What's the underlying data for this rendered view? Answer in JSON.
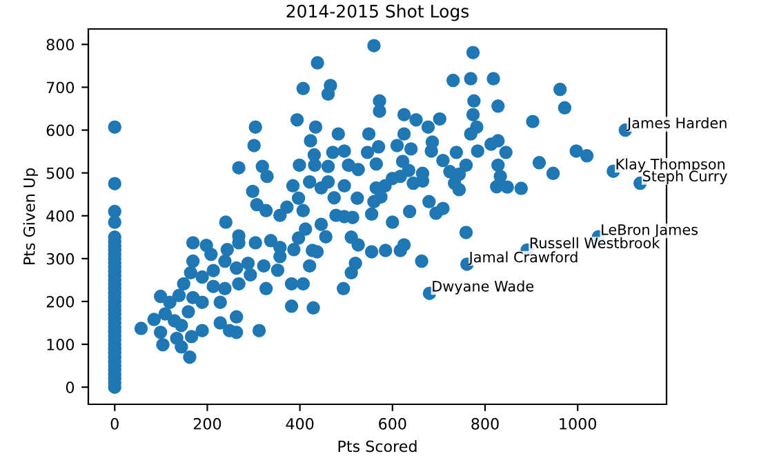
{
  "chart_data": {
    "type": "scatter",
    "title": "2014-2015 Shot Logs",
    "xlabel": "Pts Scored",
    "ylabel": "Pts Given Up",
    "xlim": [
      -57,
      1192
    ],
    "ylim": [
      -40,
      836
    ],
    "xticks": [
      0,
      200,
      400,
      600,
      800,
      1000
    ],
    "yticks": [
      0,
      100,
      200,
      300,
      400,
      500,
      600,
      700,
      800
    ],
    "grid": false,
    "marker": "circle",
    "series": [
      {
        "color": "#1f77b4",
        "x": [
          0,
          0,
          0,
          0,
          0,
          0,
          0,
          0,
          0,
          0,
          0,
          0,
          0,
          0,
          0,
          0,
          0,
          0,
          0,
          0,
          0,
          0,
          0,
          0,
          0,
          0,
          0,
          0,
          0,
          0,
          0,
          0,
          0,
          0,
          0,
          0,
          0,
          0,
          0,
          0,
          560,
          774,
          438,
          466,
          407,
          461,
          731,
          769,
          818,
          962,
          972,
          572,
          572,
          776,
          828,
          625,
          651,
          702,
          677,
          304,
          394,
          434,
          774,
          782,
          769,
          903,
          301,
          423,
          483,
          549,
          625,
          610,
          570,
          496,
          471,
          431,
          546,
          686,
          684,
          813,
          828,
          784,
          738,
          845,
          997,
          1020,
          917,
          947,
          878,
          319,
          268,
          329,
          399,
          432,
          461,
          505,
          526,
          565,
          600,
          617,
          635,
          665,
          709,
          724,
          744,
          759,
          734,
          828,
          833,
          825,
          848,
          744,
          665,
          645,
          584,
          298,
          385,
          421,
          446,
          461,
          474,
          397,
          307,
          327,
          357,
          372,
          407,
          412,
          446,
          478,
          496,
          514,
          524,
          560,
          575,
          555,
          600,
          637,
          679,
          694,
          709,
          759,
          663,
          617,
          625,
          585,
          555,
          526,
          511,
          456,
          427,
          437,
          421,
          397,
          387,
          357,
          337,
          304,
          268,
          240,
          268,
          243,
          208,
          169,
          198,
          169,
          164,
          213,
          238,
          263,
          288,
          322,
          357,
          352,
          382,
          407,
          327,
          293,
          268,
          238,
          213,
          189,
          149,
          169,
          189,
          228,
          99,
          119,
          139,
          159,
          109,
          85,
          129,
          166,
          144,
          189,
          228,
          263,
          248,
          99,
          104,
          134,
          144,
          57,
          162,
          263,
          312,
          382,
          429,
          494,
          520,
          511,
          496,
          565,
          622,
          640,
          1103,
          1077,
          1135,
          1045,
          891,
          761,
          680
        ],
        "values": [
          0,
          10,
          20,
          30,
          40,
          50,
          60,
          70,
          80,
          90,
          100,
          110,
          120,
          130,
          140,
          150,
          160,
          170,
          180,
          190,
          200,
          210,
          220,
          230,
          240,
          250,
          260,
          270,
          280,
          290,
          300,
          310,
          320,
          330,
          340,
          350,
          385,
          410,
          475,
          607,
          797,
          781,
          757,
          704,
          697,
          684,
          716,
          720,
          720,
          695,
          652,
          668,
          644,
          668,
          656,
          636,
          624,
          626,
          607,
          607,
          624,
          607,
          636,
          607,
          591,
          620,
          564,
          575,
          591,
          591,
          591,
          564,
          561,
          551,
          548,
          542,
          548,
          572,
          551,
          567,
          575,
          551,
          548,
          548,
          551,
          540,
          524,
          499,
          464,
          515,
          512,
          492,
          518,
          518,
          515,
          518,
          508,
          521,
          487,
          492,
          506,
          499,
          529,
          503,
          497,
          518,
          476,
          518,
          492,
          468,
          467,
          461,
          481,
          476,
          470,
          457,
          470,
          479,
          465,
          479,
          442,
          441,
          426,
          412,
          401,
          420,
          412,
          369,
          380,
          401,
          398,
          396,
          441,
          433,
          444,
          404,
          385,
          410,
          433,
          406,
          417,
          361,
          294,
          319,
          332,
          319,
          316,
          332,
          350,
          351,
          319,
          316,
          283,
          348,
          321,
          326,
          342,
          337,
          337,
          385,
          353,
          321,
          310,
          337,
          331,
          294,
          267,
          272,
          294,
          278,
          289,
          283,
          305,
          273,
          241,
          241,
          230,
          262,
          241,
          230,
          235,
          257,
          241,
          209,
          198,
          198,
          212,
          198,
          214,
          176,
          171,
          158,
          155,
          118,
          144,
          132,
          150,
          164,
          132,
          128,
          99,
          114,
          94,
          137,
          70,
          128,
          132,
          189,
          185,
          230,
          289,
          267,
          470,
          465,
          527,
          556,
          600,
          504,
          476,
          351,
          320,
          287,
          219
        ]
      }
    ],
    "annotations": [
      {
        "text": "James Harden",
        "x": 1103,
        "y": 600
      },
      {
        "text": "Klay Thompson",
        "x": 1077,
        "y": 504
      },
      {
        "text": "Steph Curry",
        "x": 1135,
        "y": 476
      },
      {
        "text": "LeBron James",
        "x": 1045,
        "y": 351
      },
      {
        "text": "Russell Westbrook",
        "x": 891,
        "y": 320
      },
      {
        "text": "Jamal Crawford",
        "x": 761,
        "y": 287
      },
      {
        "text": "Dwyane Wade",
        "x": 680,
        "y": 219
      }
    ]
  }
}
